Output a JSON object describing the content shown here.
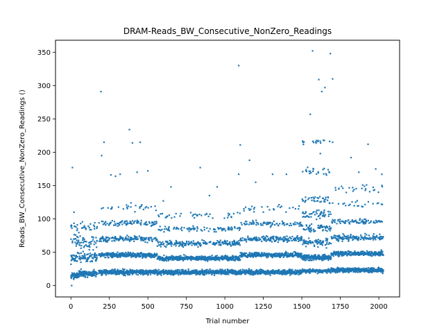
{
  "chart_data": {
    "type": "scatter",
    "title": "DRAM-Reads_BW_Consecutive_NonZero_Readings",
    "xlabel": "Trial number",
    "ylabel": "Reads_BW_Consecutive_NonZero_Readings ()",
    "xlim": [
      -100,
      2135
    ],
    "ylim": [
      -17,
      368
    ],
    "xticks": [
      0,
      250,
      500,
      750,
      1000,
      1250,
      1500,
      1750,
      2000
    ],
    "yticks": [
      0,
      50,
      100,
      150,
      200,
      250,
      300,
      350
    ],
    "grid": false,
    "point_color": "#1f77b4",
    "n_points": 2030,
    "bands": [
      {
        "x_range": [
          0,
          170
        ],
        "y": 18,
        "spread": 4,
        "density": 1.0
      },
      {
        "x_range": [
          0,
          170
        ],
        "y": 42,
        "spread": 6,
        "density": 0.55
      },
      {
        "x_range": [
          0,
          170
        ],
        "y": 65,
        "spread": 8,
        "density": 0.25
      },
      {
        "x_range": [
          0,
          170
        ],
        "y": 88,
        "spread": 6,
        "density": 0.12
      },
      {
        "x_range": [
          180,
          1500
        ],
        "y": 20,
        "spread": 2.5,
        "density": 1.0
      },
      {
        "x_range": [
          180,
          560
        ],
        "y": 46,
        "spread": 2.5,
        "density": 0.8
      },
      {
        "x_range": [
          560,
          1100
        ],
        "y": 41,
        "spread": 2.5,
        "density": 0.8
      },
      {
        "x_range": [
          1100,
          1500
        ],
        "y": 46,
        "spread": 2.5,
        "density": 0.8
      },
      {
        "x_range": [
          180,
          560
        ],
        "y": 70,
        "spread": 3,
        "density": 0.35
      },
      {
        "x_range": [
          560,
          1100
        ],
        "y": 63,
        "spread": 3,
        "density": 0.35
      },
      {
        "x_range": [
          1100,
          1500
        ],
        "y": 70,
        "spread": 3,
        "density": 0.35
      },
      {
        "x_range": [
          180,
          560
        ],
        "y": 94,
        "spread": 3,
        "density": 0.2
      },
      {
        "x_range": [
          560,
          1100
        ],
        "y": 85,
        "spread": 3,
        "density": 0.2
      },
      {
        "x_range": [
          1100,
          1500
        ],
        "y": 93,
        "spread": 3,
        "density": 0.2
      },
      {
        "x_range": [
          180,
          560
        ],
        "y": 118,
        "spread": 4,
        "density": 0.08
      },
      {
        "x_range": [
          560,
          1100
        ],
        "y": 105,
        "spread": 4,
        "density": 0.06
      },
      {
        "x_range": [
          1100,
          1500
        ],
        "y": 116,
        "spread": 4,
        "density": 0.07
      },
      {
        "x_range": [
          1500,
          1690
        ],
        "y": 22,
        "spread": 2,
        "density": 0.6
      },
      {
        "x_range": [
          1500,
          1690
        ],
        "y": 42,
        "spread": 3,
        "density": 1.0
      },
      {
        "x_range": [
          1500,
          1690
        ],
        "y": 65,
        "spread": 4,
        "density": 0.4
      },
      {
        "x_range": [
          1500,
          1690
        ],
        "y": 86,
        "spread": 4,
        "density": 0.35
      },
      {
        "x_range": [
          1500,
          1690
        ],
        "y": 108,
        "spread": 5,
        "density": 0.25
      },
      {
        "x_range": [
          1500,
          1690
        ],
        "y": 128,
        "spread": 4,
        "density": 0.25
      },
      {
        "x_range": [
          1500,
          1690
        ],
        "y": 172,
        "spread": 5,
        "density": 0.12
      },
      {
        "x_range": [
          1500,
          1690
        ],
        "y": 215,
        "spread": 4,
        "density": 0.06
      },
      {
        "x_range": [
          1690,
          2030
        ],
        "y": 23,
        "spread": 2.5,
        "density": 1.0
      },
      {
        "x_range": [
          1690,
          2030
        ],
        "y": 48,
        "spread": 2.5,
        "density": 0.8
      },
      {
        "x_range": [
          1690,
          2030
        ],
        "y": 72,
        "spread": 3,
        "density": 0.4
      },
      {
        "x_range": [
          1690,
          2030
        ],
        "y": 96,
        "spread": 3,
        "density": 0.25
      },
      {
        "x_range": [
          1690,
          2030
        ],
        "y": 122,
        "spread": 4,
        "density": 0.08
      },
      {
        "x_range": [
          1690,
          2030
        ],
        "y": 145,
        "spread": 4,
        "density": 0.05
      }
    ],
    "outliers": [
      {
        "x": 5,
        "y": 0
      },
      {
        "x": 10,
        "y": 177
      },
      {
        "x": 20,
        "y": 110
      },
      {
        "x": 195,
        "y": 291
      },
      {
        "x": 200,
        "y": 195
      },
      {
        "x": 215,
        "y": 215
      },
      {
        "x": 260,
        "y": 166
      },
      {
        "x": 290,
        "y": 164
      },
      {
        "x": 320,
        "y": 167
      },
      {
        "x": 380,
        "y": 234
      },
      {
        "x": 400,
        "y": 214
      },
      {
        "x": 450,
        "y": 215
      },
      {
        "x": 500,
        "y": 172
      },
      {
        "x": 430,
        "y": 170
      },
      {
        "x": 600,
        "y": 127
      },
      {
        "x": 650,
        "y": 148
      },
      {
        "x": 840,
        "y": 177
      },
      {
        "x": 900,
        "y": 135
      },
      {
        "x": 950,
        "y": 148
      },
      {
        "x": 1090,
        "y": 330
      },
      {
        "x": 1100,
        "y": 211
      },
      {
        "x": 1090,
        "y": 167
      },
      {
        "x": 1160,
        "y": 188
      },
      {
        "x": 1200,
        "y": 155
      },
      {
        "x": 1310,
        "y": 167
      },
      {
        "x": 1400,
        "y": 167
      },
      {
        "x": 1555,
        "y": 257
      },
      {
        "x": 1570,
        "y": 352
      },
      {
        "x": 1610,
        "y": 309
      },
      {
        "x": 1630,
        "y": 291
      },
      {
        "x": 1650,
        "y": 297
      },
      {
        "x": 1685,
        "y": 348
      },
      {
        "x": 1700,
        "y": 310
      },
      {
        "x": 1620,
        "y": 198
      },
      {
        "x": 1640,
        "y": 218
      },
      {
        "x": 1700,
        "y": 215
      },
      {
        "x": 1820,
        "y": 192
      },
      {
        "x": 1930,
        "y": 212
      },
      {
        "x": 1980,
        "y": 175
      },
      {
        "x": 2020,
        "y": 167
      },
      {
        "x": 1870,
        "y": 170
      }
    ]
  }
}
